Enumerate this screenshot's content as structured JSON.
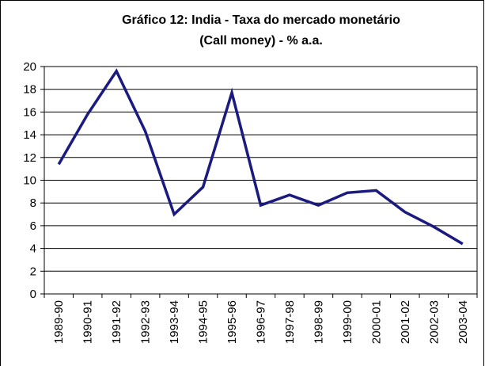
{
  "chart_data": {
    "type": "line",
    "title": [
      "Gráfico  12: India - Taxa do mercado monetário",
      "(Call money) - % a.a."
    ],
    "categories": [
      "1989-90",
      "1990-91",
      "1991-92",
      "1992-93",
      "1993-94",
      "1994-95",
      "1995-96",
      "1996-97",
      "1997-98",
      "1998-99",
      "1999-00",
      "2000-01",
      "2001-02",
      "2002-03",
      "2003-04"
    ],
    "series": [
      {
        "color": "#1a1a80",
        "values": [
          11.4,
          15.8,
          19.6,
          14.3,
          7.0,
          9.4,
          17.7,
          7.8,
          8.7,
          7.8,
          8.9,
          9.1,
          7.2,
          5.9,
          4.4
        ]
      }
    ],
    "ylim": [
      0,
      20
    ],
    "yticks": [
      0,
      2,
      4,
      6,
      8,
      10,
      12,
      14,
      16,
      18,
      20
    ],
    "grid": true
  }
}
